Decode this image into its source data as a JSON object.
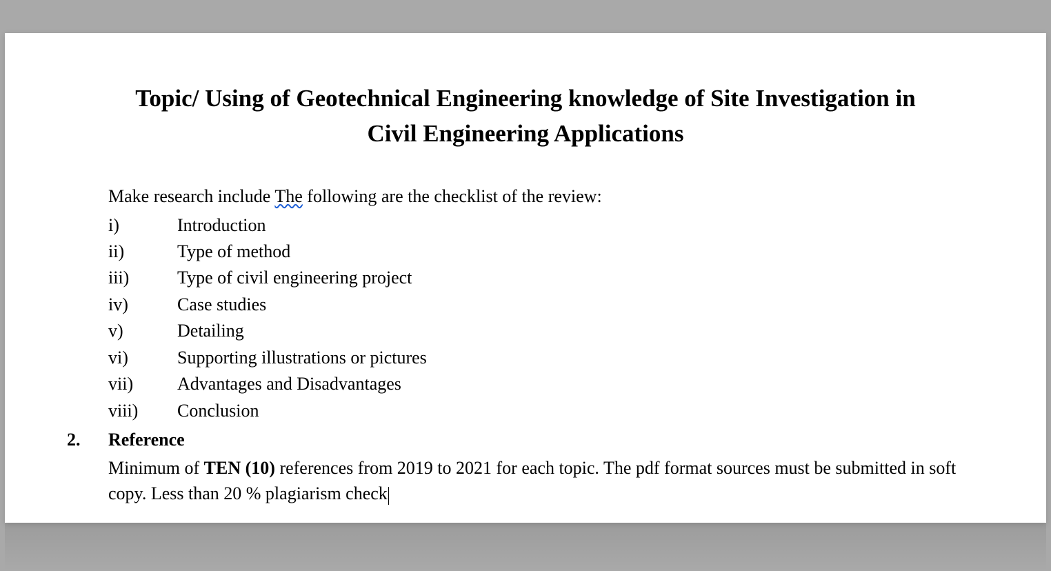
{
  "colors": {
    "page_background": "#a9a9a9",
    "document_background": "#ffffff",
    "text_color": "#000000",
    "spellcheck_underline": "#1e5fd6"
  },
  "typography": {
    "font_family": "Times New Roman",
    "title_fontsize_pt": 26,
    "body_fontsize_pt": 20,
    "title_weight": "bold"
  },
  "title": "Topic/ Using of Geotechnical Engineering knowledge of Site Investigation in Civil Engineering Applications",
  "intro": {
    "pre": "Make research include ",
    "spellcheck_word": "The",
    "post": " following are the checklist of the review:"
  },
  "checklist": [
    {
      "roman": "i)",
      "text": "Introduction"
    },
    {
      "roman": "ii)",
      "text": "Type of method"
    },
    {
      "roman": "iii)",
      "text": "Type of civil engineering project"
    },
    {
      "roman": "iv)",
      "text": "Case studies"
    },
    {
      "roman": "v)",
      "text": "Detailing"
    },
    {
      "roman": "vi)",
      "text": "Supporting illustrations or pictures"
    },
    {
      "roman": "vii)",
      "text": "Advantages and Disadvantages"
    },
    {
      "roman": "viii)",
      "text": "Conclusion"
    }
  ],
  "section2": {
    "number": "2.",
    "label": "Reference",
    "body_pre": "Minimum of ",
    "body_bold": "TEN (10)",
    "body_post": " references from 2019 to 2021 for each topic. The pdf format sources must be submitted in soft copy. Less than 20 % plagiarism check"
  }
}
